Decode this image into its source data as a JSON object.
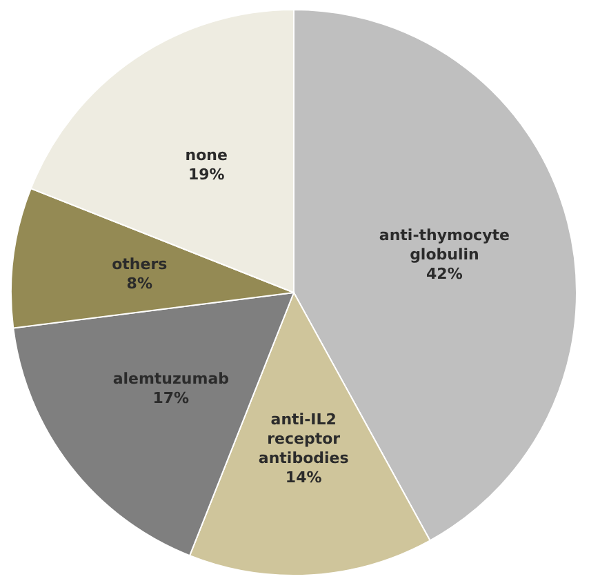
{
  "chart_data": {
    "type": "pie",
    "categories": [
      "anti-thymocyte globulin",
      "anti-IL2 receptor antibodies",
      "alemtuzumab",
      "others",
      "none"
    ],
    "values": [
      42,
      14,
      17,
      8,
      19
    ],
    "value_labels": [
      "42%",
      "14%",
      "17%",
      "8%",
      "19%"
    ],
    "colors": [
      "#bfbfbf",
      "#cfc59b",
      "#7f7f7f",
      "#948a54",
      "#eeece1"
    ]
  }
}
